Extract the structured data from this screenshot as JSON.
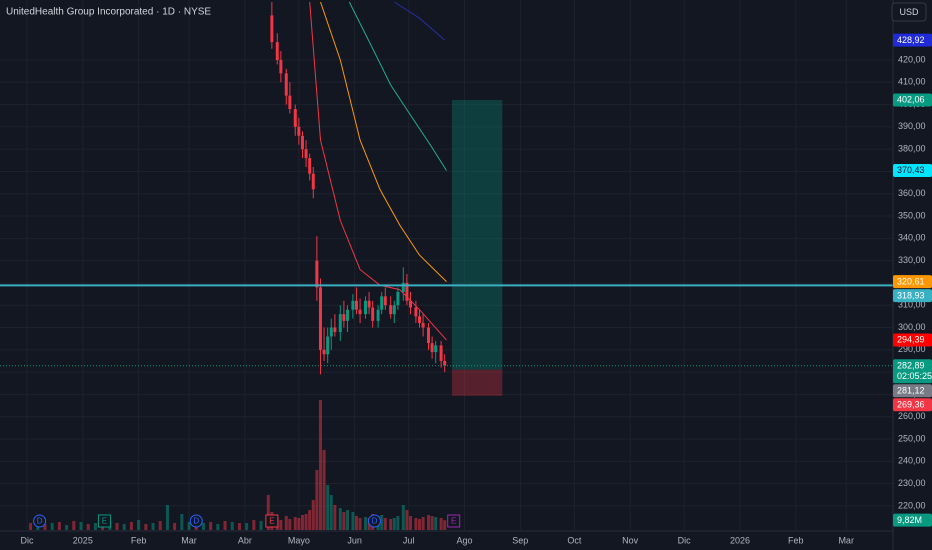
{
  "chart_data": {
    "type": "candlestick",
    "title": "UnitedHealth Group Incorporated · 1D · NYSE",
    "currency": "USD",
    "xlim": [
      -15,
      481
    ],
    "ylim": [
      209.2,
      446.9
    ],
    "xticks": [
      {
        "value": 0,
        "label": "Dic"
      },
      {
        "value": 31,
        "label": "2025"
      },
      {
        "value": 62,
        "label": "Feb"
      },
      {
        "value": 90,
        "label": "Mar"
      },
      {
        "value": 121,
        "label": "Abr"
      },
      {
        "value": 151,
        "label": "Mayo"
      },
      {
        "value": 182,
        "label": "Jun"
      },
      {
        "value": 212,
        "label": "Jul"
      },
      {
        "value": 243,
        "label": "Ago"
      },
      {
        "value": 274,
        "label": "Sep"
      },
      {
        "value": 304,
        "label": "Oct"
      },
      {
        "value": 335,
        "label": "Nov"
      },
      {
        "value": 365,
        "label": "Dic"
      },
      {
        "value": 396,
        "label": "2026"
      },
      {
        "value": 427,
        "label": "Feb"
      },
      {
        "value": 455,
        "label": "Mar"
      }
    ],
    "yticks": [
      {
        "value": 220,
        "label": "220,00"
      },
      {
        "value": 230,
        "label": "230,00"
      },
      {
        "value": 240,
        "label": "240,00"
      },
      {
        "value": 250,
        "label": "250,00"
      },
      {
        "value": 260,
        "label": "260,00"
      },
      {
        "value": 270,
        "label": "270,00"
      },
      {
        "value": 280,
        "label": "280,00"
      },
      {
        "value": 290,
        "label": "290,00"
      },
      {
        "value": 300,
        "label": "300,00"
      },
      {
        "value": 310,
        "label": "310,00"
      },
      {
        "value": 320,
        "label": "320,00"
      },
      {
        "value": 330,
        "label": "330,00"
      },
      {
        "value": 340,
        "label": "340,00"
      },
      {
        "value": 350,
        "label": "350,00"
      },
      {
        "value": 360,
        "label": "360,00"
      },
      {
        "value": 370,
        "label": "370,00"
      },
      {
        "value": 380,
        "label": "380,00"
      },
      {
        "value": 390,
        "label": "390,00"
      },
      {
        "value": 400,
        "label": "400,00"
      },
      {
        "value": 410,
        "label": "410,00"
      },
      {
        "value": 420,
        "label": "420,00"
      }
    ],
    "grid": true,
    "up_color": "#089981",
    "down_color": "#f23645",
    "x": [
      136,
      139,
      141,
      144,
      146,
      149,
      151,
      153,
      155,
      157,
      159,
      161,
      163,
      165,
      167,
      169,
      171,
      174,
      176,
      178,
      181,
      183,
      185,
      188,
      190,
      192,
      195,
      197,
      199,
      202,
      204,
      206,
      209,
      211,
      213,
      216,
      218,
      220,
      223,
      225,
      227,
      230,
      232
    ],
    "open": [
      440,
      428,
      420,
      414,
      404,
      398,
      390,
      386,
      380,
      376,
      369,
      330,
      318,
      290,
      288,
      296,
      300,
      298,
      306,
      303,
      308,
      312,
      308,
      306,
      312,
      309,
      303,
      308,
      314,
      310,
      306,
      310,
      316,
      320,
      312,
      309,
      305,
      302,
      300,
      293,
      289,
      292,
      285
    ],
    "high": [
      446,
      432,
      424,
      416,
      410,
      400,
      394,
      388,
      384,
      378,
      372,
      341,
      322,
      300,
      300,
      304,
      306,
      310,
      312,
      310,
      315,
      318,
      313,
      314,
      316,
      312,
      310,
      316,
      318,
      314,
      312,
      318,
      327,
      324,
      316,
      312,
      308,
      306,
      302,
      296,
      294,
      294,
      288
    ],
    "low": [
      425,
      418,
      410,
      400,
      396,
      386,
      382,
      376,
      372,
      366,
      358,
      312,
      279,
      285,
      284,
      290,
      296,
      294,
      300,
      298,
      304,
      306,
      302,
      304,
      306,
      300,
      300,
      306,
      308,
      304,
      302,
      308,
      312,
      310,
      306,
      302,
      300,
      296,
      290,
      286,
      284,
      282,
      280
    ],
    "close": [
      428,
      420,
      414,
      404,
      398,
      390,
      386,
      380,
      376,
      369,
      362,
      318,
      290,
      288,
      296,
      300,
      298,
      306,
      303,
      308,
      312,
      308,
      306,
      312,
      309,
      303,
      308,
      314,
      310,
      306,
      310,
      316,
      320,
      312,
      309,
      305,
      302,
      300,
      293,
      289,
      292,
      285,
      282.89
    ],
    "ma_lines": [
      {
        "color": "#f23645",
        "x": [
          157,
          163,
          174,
          185,
          196,
          207,
          218,
          233
        ],
        "values": [
          446,
          384,
          348,
          326,
          319,
          317,
          308,
          294.39
        ]
      },
      {
        "color": "#ff9800",
        "x": [
          163,
          174,
          185,
          196,
          207,
          218,
          233
        ],
        "values": [
          446,
          420,
          384,
          362,
          346,
          332.5,
          320.61
        ]
      },
      {
        "color": "#22ab94",
        "x": [
          179,
          191,
          202,
          213,
          224,
          233
        ],
        "values": [
          446,
          426.7,
          408.8,
          395.3,
          381.9,
          370.43
        ]
      },
      {
        "color": "#2a2ea8",
        "x": [
          204,
          218,
          232
        ],
        "values": [
          446,
          438.8,
          428.92
        ]
      }
    ],
    "hline": {
      "value": 318.93,
      "color": "#3ab0c3"
    },
    "position": {
      "start": 236,
      "end": 264,
      "target": 402.06,
      "entry": 281.12,
      "stop": 269.36
    },
    "vlim": [
      0,
      140
    ],
    "volume": [
      {
        "color": "rgba(242,54,69,0.5)",
        "x": [
          2,
          10,
          18,
          26,
          34,
          42,
          50,
          58,
          66,
          74,
          82,
          94,
          102,
          110,
          118,
          126,
          134,
          136,
          139,
          141,
          144,
          146,
          149,
          151,
          153,
          155,
          157,
          159,
          161,
          163,
          165,
          171,
          176,
          183,
          185,
          190,
          192,
          199,
          202,
          211,
          213,
          216,
          218,
          220,
          223,
          225,
          230,
          232
        ],
        "values": [
          7,
          6,
          8,
          9,
          6,
          12,
          7,
          8,
          6,
          9,
          7,
          11,
          8,
          9,
          7,
          10,
          35,
          18,
          12,
          10,
          14,
          11,
          13,
          12,
          15,
          16,
          20,
          30,
          60,
          130,
          80,
          25,
          18,
          14,
          12,
          12,
          16,
          12,
          11,
          20,
          14,
          12,
          11,
          13,
          15,
          14,
          12,
          9.82
        ]
      },
      {
        "color": "rgba(8,153,129,0.5)",
        "x": [
          6,
          14,
          22,
          30,
          38,
          46,
          54,
          62,
          70,
          78,
          86,
          90,
          98,
          106,
          114,
          122,
          130,
          167,
          169,
          174,
          178,
          181,
          188,
          195,
          197,
          204,
          206,
          209,
          227
        ],
        "values": [
          6,
          7,
          5,
          8,
          7,
          9,
          6,
          10,
          7,
          25,
          16,
          8,
          7,
          6,
          8,
          7,
          9,
          45,
          35,
          22,
          20,
          18,
          13,
          14,
          15,
          12,
          14,
          25,
          13
        ]
      }
    ],
    "price_tags": [
      {
        "value": 428.92,
        "label": "428,92",
        "color": "#1e2bd6",
        "text_color": "#ffffff"
      },
      {
        "value": 402.06,
        "label": "402,06",
        "color": "#089981",
        "text_color": "#ffffff"
      },
      {
        "value": 370.43,
        "label": "370,43",
        "color": "#00e5ff",
        "text_color": "#131722"
      },
      {
        "value": 320.61,
        "label": "320,61",
        "color": "#ff9800",
        "text_color": "#ffffff"
      },
      {
        "value": 318.93,
        "label": "318,93",
        "color": "#3ab0c3",
        "text_color": "#ffffff"
      },
      {
        "value": 294.39,
        "label": "294,39",
        "color": "#ff0000",
        "text_color": "#ffffff"
      },
      {
        "value": 282.89,
        "label": "282,89",
        "countdown": "02:05:25",
        "color": "#089981",
        "text_color": "#ffffff"
      },
      {
        "value": 281.12,
        "label": "281,12",
        "color": "#787b86",
        "text_color": "#ffffff"
      },
      {
        "value": 269.36,
        "label": "269,36",
        "color": "#f23645",
        "text_color": "#ffffff"
      }
    ],
    "volume_tag": {
      "value": 9.82,
      "label": "9,82M",
      "color": "#089981"
    },
    "events": [
      {
        "x": 7,
        "label": "D",
        "color": "#2962ff",
        "shape": "circle"
      },
      {
        "x": 43,
        "label": "E",
        "color": "#089981",
        "shape": "square"
      },
      {
        "x": 94,
        "label": "D",
        "color": "#2962ff",
        "shape": "circle"
      },
      {
        "x": 136,
        "label": "E",
        "color": "#f23645",
        "shape": "square"
      },
      {
        "x": 193,
        "label": "D",
        "color": "#2962ff",
        "shape": "circle"
      },
      {
        "x": 237,
        "label": "E",
        "color": "#9c27b0",
        "shape": "square"
      }
    ]
  }
}
